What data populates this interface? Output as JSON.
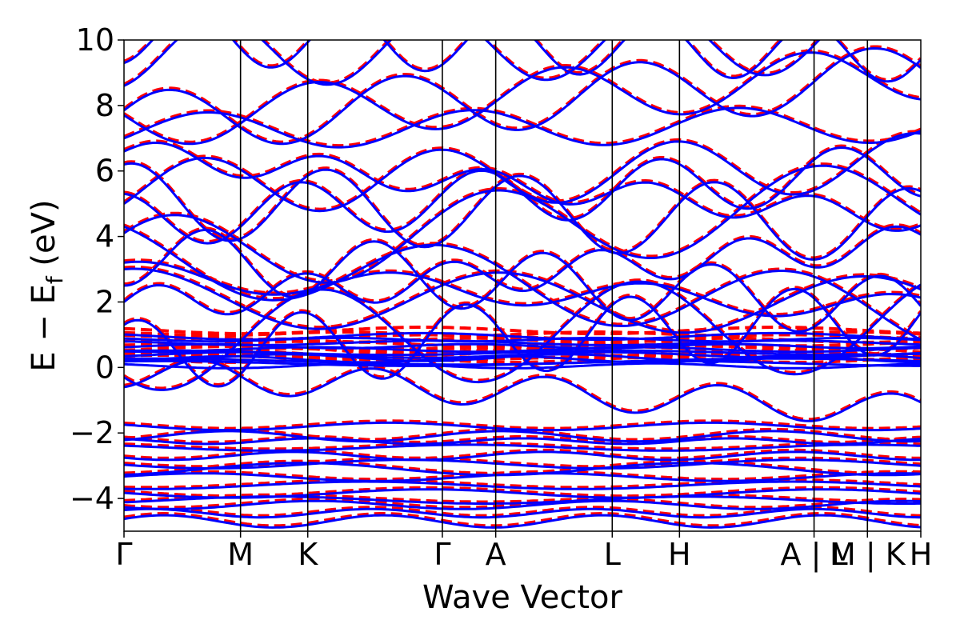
{
  "chart_data": {
    "type": "line",
    "title": "",
    "xlabel": "Wave Vector",
    "ylabel_parts": {
      "main": "E − E",
      "sub": "f",
      "unit": " (eV)"
    },
    "ylim": [
      -5,
      10
    ],
    "yticks": [
      -4,
      -2,
      0,
      2,
      4,
      6,
      8,
      10
    ],
    "ytick_labels": [
      "−4",
      "−2",
      "0",
      "2",
      "4",
      "6",
      "8",
      "10"
    ],
    "kpoints": [
      {
        "label": "Γ",
        "x": 0.0
      },
      {
        "label": "M",
        "x": 1.0
      },
      {
        "label": "K",
        "x": 1.577
      },
      {
        "label": "Γ",
        "x": 2.732
      },
      {
        "label": "A",
        "x": 3.19
      },
      {
        "label": "L",
        "x": 4.19
      },
      {
        "label": "H",
        "x": 4.767
      },
      {
        "label": "A | L",
        "x": 5.922
      },
      {
        "label": "M | K",
        "x": 6.38
      },
      {
        "label": "H",
        "x": 6.838
      }
    ],
    "xlim": [
      0.0,
      6.838
    ],
    "fermi_level": 0,
    "grid": false,
    "legend": "none",
    "series": [
      {
        "color": "#ff0000",
        "style": "dashed"
      },
      {
        "color": "#0000ff",
        "style": "solid"
      }
    ],
    "core_bands": [
      -4.7,
      -4.45,
      -4.2,
      -4.05,
      -3.85,
      -3.6,
      -3.35,
      -3.1,
      -2.95,
      -2.7,
      -2.45,
      -2.25,
      -2.1,
      -1.8
    ],
    "flat_bands": [
      0.05,
      0.12,
      0.18,
      0.25,
      0.3,
      0.38,
      0.45,
      0.55,
      0.65,
      0.75,
      0.85,
      0.95
    ],
    "dispersive_bands_gamma": [
      -0.6,
      -0.3,
      1.3,
      2.0,
      2.5,
      3.0,
      3.2,
      4.1,
      4.3,
      5.0,
      5.3,
      6.2,
      6.6,
      7.0,
      7.7,
      7.85,
      8.6,
      9.3
    ]
  }
}
